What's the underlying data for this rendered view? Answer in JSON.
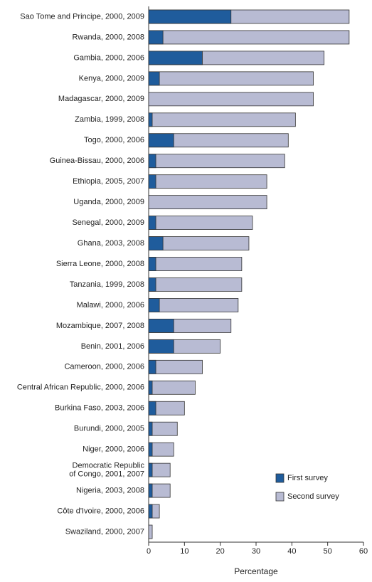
{
  "chart_data": {
    "type": "bar",
    "orientation": "horizontal",
    "overlap": true,
    "categories": [
      "Sao Tome and Principe, 2000, 2009",
      "Rwanda, 2000, 2008",
      "Gambia, 2000, 2006",
      "Kenya, 2000, 2009",
      "Madagascar, 2000, 2009",
      "Zambia, 1999, 2008",
      "Togo, 2000, 2006",
      "Guinea-Bissau, 2000, 2006",
      "Ethiopia, 2005, 2007",
      "Uganda, 2000, 2009",
      "Senegal, 2000, 2009",
      "Ghana, 2003, 2008",
      "Sierra Leone, 2000, 2008",
      "Tanzania, 1999, 2008",
      "Malawi, 2000, 2006",
      "Mozambique, 2007, 2008",
      "Benin, 2001, 2006",
      "Cameroon, 2000, 2006",
      "Central African Republic, 2000, 2006",
      "Burkina Faso, 2003, 2006",
      "Burundi, 2000, 2005",
      "Niger, 2000, 2006",
      "Democratic Republic\nof Congo, 2001, 2007",
      "Nigeria, 2003, 2008",
      "Côte d'Ivoire, 2000, 2006",
      "Swaziland, 2000, 2007"
    ],
    "series": [
      {
        "name": "Second survey",
        "color": "#b8bbd3",
        "values": [
          56,
          56,
          49,
          46,
          46,
          41,
          39,
          38,
          33,
          33,
          29,
          28,
          26,
          26,
          25,
          23,
          20,
          15,
          13,
          10,
          8,
          7,
          6,
          6,
          3,
          1
        ]
      },
      {
        "name": "First survey",
        "color": "#1f5c9c",
        "values": [
          23,
          4,
          15,
          3,
          0,
          1,
          7,
          2,
          2,
          0,
          2,
          4,
          2,
          2,
          3,
          7,
          7,
          2,
          1,
          2,
          1,
          1,
          1,
          1,
          1,
          0
        ]
      }
    ],
    "xlabel": "Percentage",
    "xlim": [
      0,
      60
    ],
    "xticks": [
      0,
      10,
      20,
      30,
      40,
      50,
      60
    ],
    "grid": false
  }
}
